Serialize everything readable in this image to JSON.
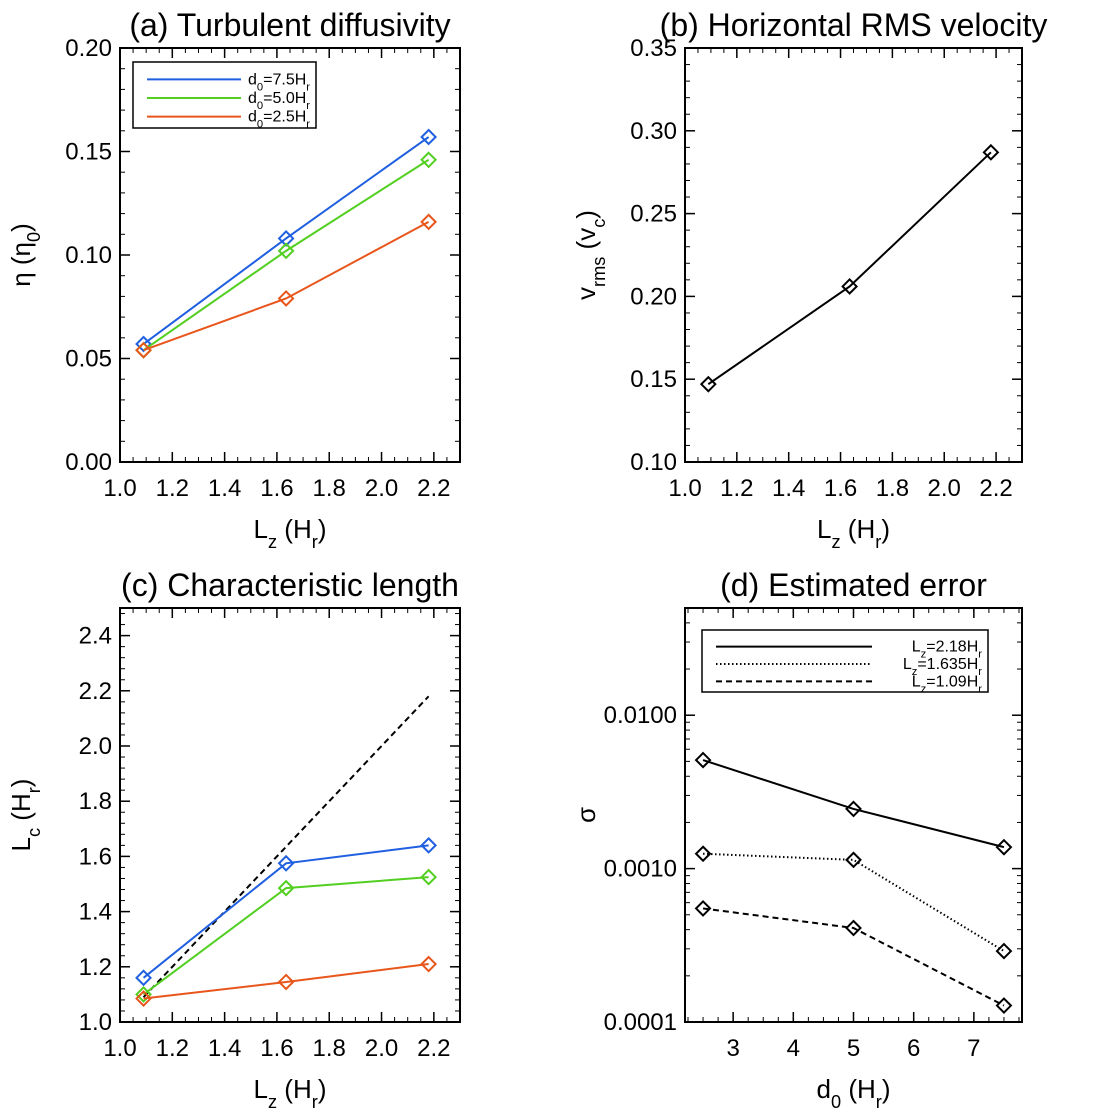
{
  "colors": {
    "blue": "#1f5fe0",
    "green": "#52cf20",
    "orange": "#e8561c",
    "black": "#000000"
  },
  "chart_data": [
    {
      "type": "line",
      "title": "(a) Turbulent diffusivity",
      "xlabel": "L_z (H_r)",
      "ylabel": "η (η_0)",
      "xlim": [
        1.0,
        2.3
      ],
      "ylim": [
        0.0,
        0.2
      ],
      "xticks": [
        "1.0",
        "1.2",
        "1.4",
        "1.6",
        "1.8",
        "2.0",
        "2.2"
      ],
      "yticks": [
        "0.00",
        "0.05",
        "0.10",
        "0.15",
        "0.20"
      ],
      "x": [
        1.09,
        1.635,
        2.18
      ],
      "marker": "diamond",
      "legend": "top-left, boxed",
      "series": [
        {
          "name": "d_0=7.5H_r",
          "values": [
            0.057,
            0.108,
            0.157
          ],
          "color": "#1f5fe0",
          "style": "solid"
        },
        {
          "name": "d_0=5.0H_r",
          "values": [
            0.054,
            0.102,
            0.146
          ],
          "color": "#52cf20",
          "style": "solid"
        },
        {
          "name": "d_0=2.5H_r",
          "values": [
            0.054,
            0.079,
            0.116
          ],
          "color": "#e8561c",
          "style": "solid"
        }
      ]
    },
    {
      "type": "line",
      "title": "(b) Horizontal RMS velocity",
      "xlabel": "L_z (H_r)",
      "ylabel": "v_rms (v_c)",
      "xlim": [
        1.0,
        2.3
      ],
      "ylim": [
        0.1,
        0.35
      ],
      "xticks": [
        "1.0",
        "1.2",
        "1.4",
        "1.6",
        "1.8",
        "2.0",
        "2.2"
      ],
      "yticks": [
        "0.10",
        "0.15",
        "0.20",
        "0.25",
        "0.30",
        "0.35"
      ],
      "x": [
        1.09,
        1.635,
        2.18
      ],
      "marker": "diamond",
      "series": [
        {
          "values": [
            0.147,
            0.206,
            0.287
          ],
          "color": "#000000",
          "style": "solid"
        }
      ]
    },
    {
      "type": "line",
      "title": "(c) Characteristic length",
      "xlabel": "L_z (H_r)",
      "ylabel": "L_c (H_r)",
      "xlim": [
        1.0,
        2.3
      ],
      "ylim": [
        1.0,
        2.5
      ],
      "xticks": [
        "1.0",
        "1.2",
        "1.4",
        "1.6",
        "1.8",
        "2.0",
        "2.2"
      ],
      "yticks": [
        "1.0",
        "1.2",
        "1.4",
        "1.6",
        "1.8",
        "2.0",
        "2.2",
        "2.4"
      ],
      "x": [
        1.09,
        1.635,
        2.18
      ],
      "marker": "diamond",
      "series": [
        {
          "values": [
            1.16,
            1.575,
            1.64
          ],
          "color": "#1f5fe0",
          "style": "solid"
        },
        {
          "values": [
            1.1,
            1.485,
            1.525
          ],
          "color": "#52cf20",
          "style": "solid"
        },
        {
          "values": [
            1.085,
            1.145,
            1.21
          ],
          "color": "#e8561c",
          "style": "solid"
        }
      ],
      "reference_line": {
        "x": [
          1.09,
          2.18
        ],
        "y": [
          1.09,
          2.18
        ],
        "color": "#000000",
        "style": "dashed"
      }
    },
    {
      "type": "line",
      "title": "(d) Estimated error",
      "xlabel": "d_0 (H_r)",
      "ylabel": "σ",
      "xlim": [
        2.2,
        7.8
      ],
      "ylim": [
        0.0001,
        0.05
      ],
      "yscale": "log",
      "xticks": [
        "3",
        "4",
        "5",
        "6",
        "7"
      ],
      "yticks": [
        "0.0001",
        "0.0010",
        "0.0100"
      ],
      "x": [
        2.5,
        5.0,
        7.5
      ],
      "marker": "diamond",
      "legend": "top, boxed",
      "series": [
        {
          "name": "L_z=2.18H_r",
          "values": [
            0.0051,
            0.00245,
            0.00138
          ],
          "color": "#000000",
          "style": "solid"
        },
        {
          "name": "L_z=1.635H_r",
          "values": [
            0.00125,
            0.00114,
            0.00029
          ],
          "color": "#000000",
          "style": "dotted"
        },
        {
          "name": "L_z=1.09H_r",
          "values": [
            0.00055,
            0.00041,
            0.000128
          ],
          "color": "#000000",
          "style": "dashed"
        }
      ]
    }
  ]
}
